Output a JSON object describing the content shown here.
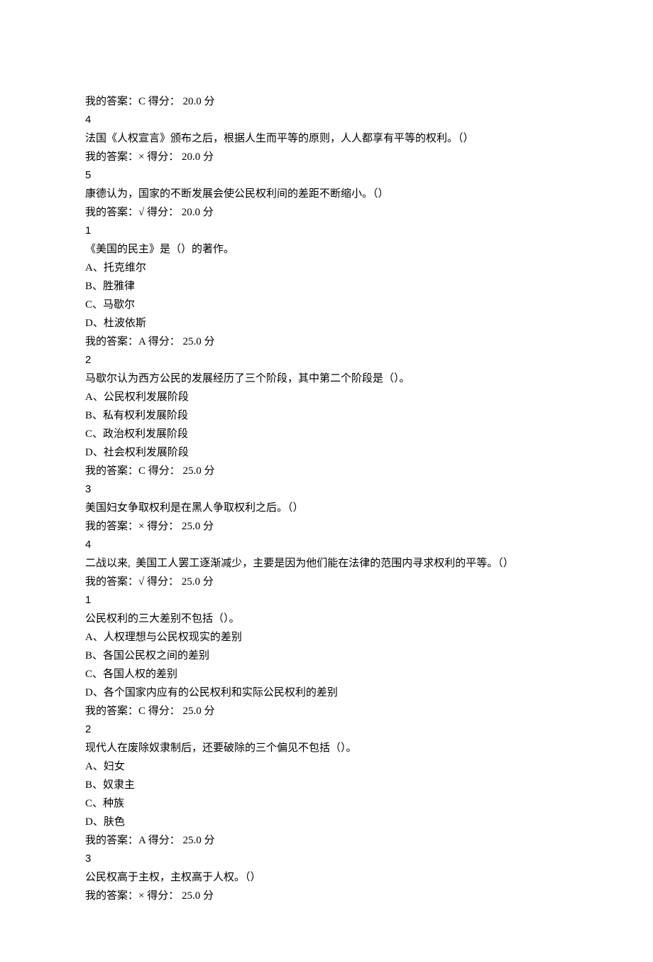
{
  "lines": [
    {
      "text": "我的答案：C 得分： 20.0 分"
    },
    {
      "text": "4",
      "cls": "qnum"
    },
    {
      "text": "法国《人权宣言》颁布之后，根据人生而平等的原则，人人都享有平等的权利。（）"
    },
    {
      "text": "我的答案：× 得分： 20.0 分"
    },
    {
      "text": "5",
      "cls": "qnum"
    },
    {
      "text": "康德认为，国家的不断发展会使公民权利间的差距不断缩小。（）"
    },
    {
      "text": "我的答案：√ 得分： 20.0 分"
    },
    {
      "text": "1",
      "cls": "qnum"
    },
    {
      "text": "《美国的民主》是（）的著作。"
    },
    {
      "text": "A、托克维尔",
      "prefix": "A"
    },
    {
      "text": "B、胜雅律",
      "prefix": "B"
    },
    {
      "text": "C、马歇尔",
      "prefix": "C"
    },
    {
      "text": "D、杜波依斯",
      "prefix": "D"
    },
    {
      "text": "我的答案：A 得分： 25.0 分"
    },
    {
      "text": "2",
      "cls": "qnum"
    },
    {
      "text": "马歇尔认为西方公民的发展经历了三个阶段，其中第二个阶段是（）。"
    },
    {
      "text": "A、公民权利发展阶段",
      "prefix": "A"
    },
    {
      "text": "B、私有权利发展阶段",
      "prefix": "B"
    },
    {
      "text": "C、政治权利发展阶段",
      "prefix": "C"
    },
    {
      "text": "D、社会权利发展阶段",
      "prefix": "D"
    },
    {
      "text": "我的答案：C 得分： 25.0 分"
    },
    {
      "text": "3",
      "cls": "qnum"
    },
    {
      "text": "美国妇女争取权利是在黑人争取权利之后。（）"
    },
    {
      "text": "我的答案：× 得分： 25.0 分"
    },
    {
      "text": "4",
      "cls": "qnum"
    },
    {
      "text": "二战以来,  美国工人罢工逐渐减少，主要是因为他们能在法律的范围内寻求权利的平等。（）"
    },
    {
      "text": "我的答案：√ 得分： 25.0 分"
    },
    {
      "text": "1",
      "cls": "qnum"
    },
    {
      "text": "公民权利的三大差别不包括（）。"
    },
    {
      "text": "A、人权理想与公民权现实的差别",
      "prefix": "A"
    },
    {
      "text": "B、各国公民权之间的差别",
      "prefix": "B"
    },
    {
      "text": "C、各国人权的差别",
      "prefix": "C"
    },
    {
      "text": "D、各个国家内应有的公民权利和实际公民权利的差别",
      "prefix": "D"
    },
    {
      "text": "我的答案：C 得分： 25.0 分"
    },
    {
      "text": "2",
      "cls": "qnum"
    },
    {
      "text": "现代人在废除奴隶制后，还要破除的三个偏见不包括（）。"
    },
    {
      "text": "A、妇女",
      "prefix": "A"
    },
    {
      "text": "B、奴隶主",
      "prefix": "B"
    },
    {
      "text": "C、种族",
      "prefix": "C"
    },
    {
      "text": "D、肤色",
      "prefix": "D"
    },
    {
      "text": "我的答案：A 得分： 25.0 分"
    },
    {
      "text": "3",
      "cls": "qnum"
    },
    {
      "text": "公民权高于主权，主权高于人权。（）"
    },
    {
      "text": "我的答案：× 得分： 25.0 分"
    }
  ]
}
